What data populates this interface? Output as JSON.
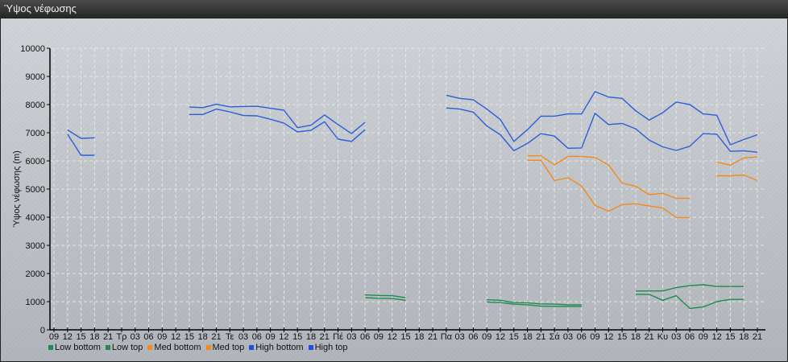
{
  "window": {
    "title": "Ύψος νέφωσης"
  },
  "colors": {
    "low": "#1e8a4e",
    "med": "#f28a1e",
    "high": "#2b5fd9"
  },
  "chart_data": {
    "type": "line",
    "title": "",
    "xlabel": "",
    "ylabel": "Ύψος νέφωσης (m)",
    "ylim": [
      0,
      10000
    ],
    "yticks": [
      "0",
      "1000",
      "2000",
      "3000",
      "4000",
      "5000",
      "6000",
      "7000",
      "8000",
      "9000",
      "10000"
    ],
    "grid": true,
    "legend": "bottom-left",
    "x": [
      "09",
      "12",
      "15",
      "18",
      "21",
      "Τρ",
      "03",
      "06",
      "09",
      "12",
      "15",
      "18",
      "21",
      "Τε",
      "03",
      "06",
      "09",
      "12",
      "15",
      "18",
      "21",
      "Πέ",
      "03",
      "06",
      "09",
      "12",
      "15",
      "18",
      "21",
      "Πα",
      "03",
      "06",
      "09",
      "12",
      "15",
      "18",
      "21",
      "Σά",
      "03",
      "06",
      "09",
      "12",
      "15",
      "18",
      "21",
      "Κυ",
      "03",
      "06",
      "09",
      "12",
      "15",
      "18",
      "21"
    ],
    "series": [
      {
        "name": "Low bottom",
        "color": "#1e8a4e",
        "values": [
          null,
          null,
          null,
          null,
          null,
          null,
          null,
          null,
          null,
          null,
          null,
          null,
          null,
          null,
          null,
          null,
          null,
          null,
          null,
          null,
          null,
          null,
          null,
          1140,
          1120,
          1110,
          1050,
          null,
          null,
          null,
          null,
          null,
          990,
          970,
          910,
          890,
          840,
          830,
          830,
          830,
          null,
          null,
          null,
          1260,
          1260,
          1050,
          1210,
          760,
          810,
          1000,
          1080,
          1080,
          null
        ]
      },
      {
        "name": "Low top",
        "color": "#1e8a4e",
        "values": [
          null,
          null,
          null,
          null,
          null,
          null,
          null,
          null,
          null,
          null,
          null,
          null,
          null,
          null,
          null,
          null,
          null,
          null,
          null,
          null,
          null,
          null,
          null,
          1240,
          1220,
          1210,
          1140,
          null,
          null,
          null,
          null,
          null,
          1070,
          1050,
          970,
          960,
          920,
          910,
          890,
          890,
          null,
          null,
          null,
          1380,
          1380,
          1380,
          1500,
          1570,
          1600,
          1540,
          1540,
          1540,
          null
        ]
      },
      {
        "name": "Med bottom",
        "color": "#f28a1e",
        "values": [
          null,
          null,
          null,
          null,
          null,
          null,
          null,
          null,
          null,
          null,
          null,
          null,
          null,
          null,
          null,
          null,
          null,
          null,
          null,
          null,
          null,
          null,
          null,
          null,
          null,
          null,
          null,
          null,
          null,
          null,
          null,
          null,
          null,
          null,
          null,
          6020,
          6020,
          5300,
          5400,
          5110,
          4420,
          4210,
          4450,
          4480,
          4400,
          4330,
          3990,
          3990,
          null,
          5470,
          5470,
          5500,
          5300
        ]
      },
      {
        "name": "Med top",
        "color": "#f28a1e",
        "values": [
          null,
          null,
          null,
          null,
          null,
          null,
          null,
          null,
          null,
          null,
          null,
          null,
          null,
          null,
          null,
          null,
          null,
          null,
          null,
          null,
          null,
          null,
          null,
          null,
          null,
          null,
          null,
          null,
          null,
          null,
          null,
          null,
          null,
          null,
          null,
          6180,
          6180,
          5860,
          6160,
          6160,
          6120,
          5860,
          5210,
          5100,
          4800,
          4850,
          4670,
          4670,
          null,
          5960,
          5850,
          6110,
          6140
        ]
      },
      {
        "name": "High bottom",
        "color": "#2b5fd9",
        "values": [
          null,
          6950,
          6200,
          6200,
          null,
          null,
          null,
          null,
          null,
          null,
          7650,
          7650,
          7840,
          7740,
          7610,
          7600,
          7480,
          7340,
          7030,
          7090,
          7390,
          6770,
          6690,
          7110,
          null,
          null,
          null,
          null,
          null,
          7880,
          7840,
          7730,
          7240,
          6930,
          6360,
          6620,
          6970,
          6880,
          6450,
          6460,
          7690,
          7290,
          7330,
          7140,
          6740,
          6500,
          6370,
          6520,
          6970,
          6950,
          6340,
          6360,
          6310
        ]
      },
      {
        "name": "High top",
        "color": "#2b5fd9",
        "values": [
          null,
          7100,
          6800,
          6820,
          null,
          null,
          null,
          null,
          null,
          null,
          7910,
          7890,
          8010,
          7920,
          7930,
          7940,
          7870,
          7800,
          7180,
          7270,
          7630,
          7290,
          6970,
          7370,
          null,
          null,
          null,
          null,
          null,
          8330,
          8220,
          8170,
          7840,
          7470,
          6690,
          7110,
          7590,
          7590,
          7670,
          7670,
          8460,
          8270,
          8220,
          7780,
          7450,
          7710,
          8090,
          8000,
          7670,
          7620,
          6570,
          6760,
          6930
        ]
      }
    ]
  }
}
